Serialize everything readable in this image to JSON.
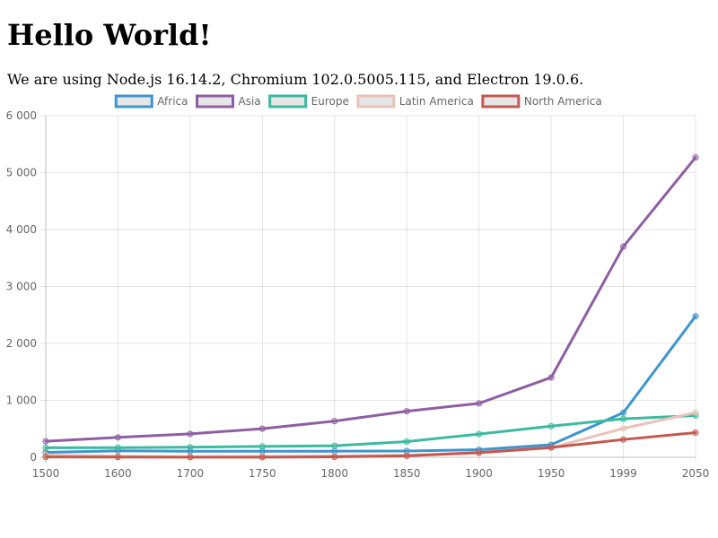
{
  "header": {
    "title": "Hello World!",
    "intro": "We are using Node.js ",
    "node_version": "16.14.2",
    "chromium_sep": ", Chromium ",
    "chromium_version": "102.0.5005.115",
    "electron_sep": ", and Electron ",
    "electron_version": "19.0.6",
    "end": "."
  },
  "chart_data": {
    "type": "line",
    "categories": [
      "1500",
      "1600",
      "1700",
      "1750",
      "1800",
      "1850",
      "1900",
      "1950",
      "1999",
      "2050"
    ],
    "series": [
      {
        "name": "Africa",
        "color": "#3e95cd",
        "values": [
          86,
          114,
          106,
          106,
          107,
          111,
          133,
          221,
          783,
          2478
        ]
      },
      {
        "name": "Asia",
        "color": "#8e5ea2",
        "values": [
          282,
          350,
          411,
          502,
          635,
          809,
          947,
          1402,
          3700,
          5267
        ]
      },
      {
        "name": "Europe",
        "color": "#3cba9f",
        "values": [
          168,
          170,
          178,
          190,
          203,
          276,
          408,
          547,
          675,
          734
        ]
      },
      {
        "name": "Latin America",
        "color": "#e8c3b9",
        "values": [
          40,
          20,
          10,
          16,
          24,
          38,
          74,
          167,
          508,
          784
        ]
      },
      {
        "name": "North America",
        "color": "#c45850",
        "values": [
          6,
          3,
          2,
          2,
          7,
          26,
          82,
          172,
          312,
          433
        ]
      }
    ],
    "y_ticks": [
      "0",
      "1 000",
      "2 000",
      "3 000",
      "4 000",
      "5 000",
      "6 000"
    ],
    "ylim": [
      0,
      6000
    ],
    "grid": true,
    "legend_position": "top"
  }
}
